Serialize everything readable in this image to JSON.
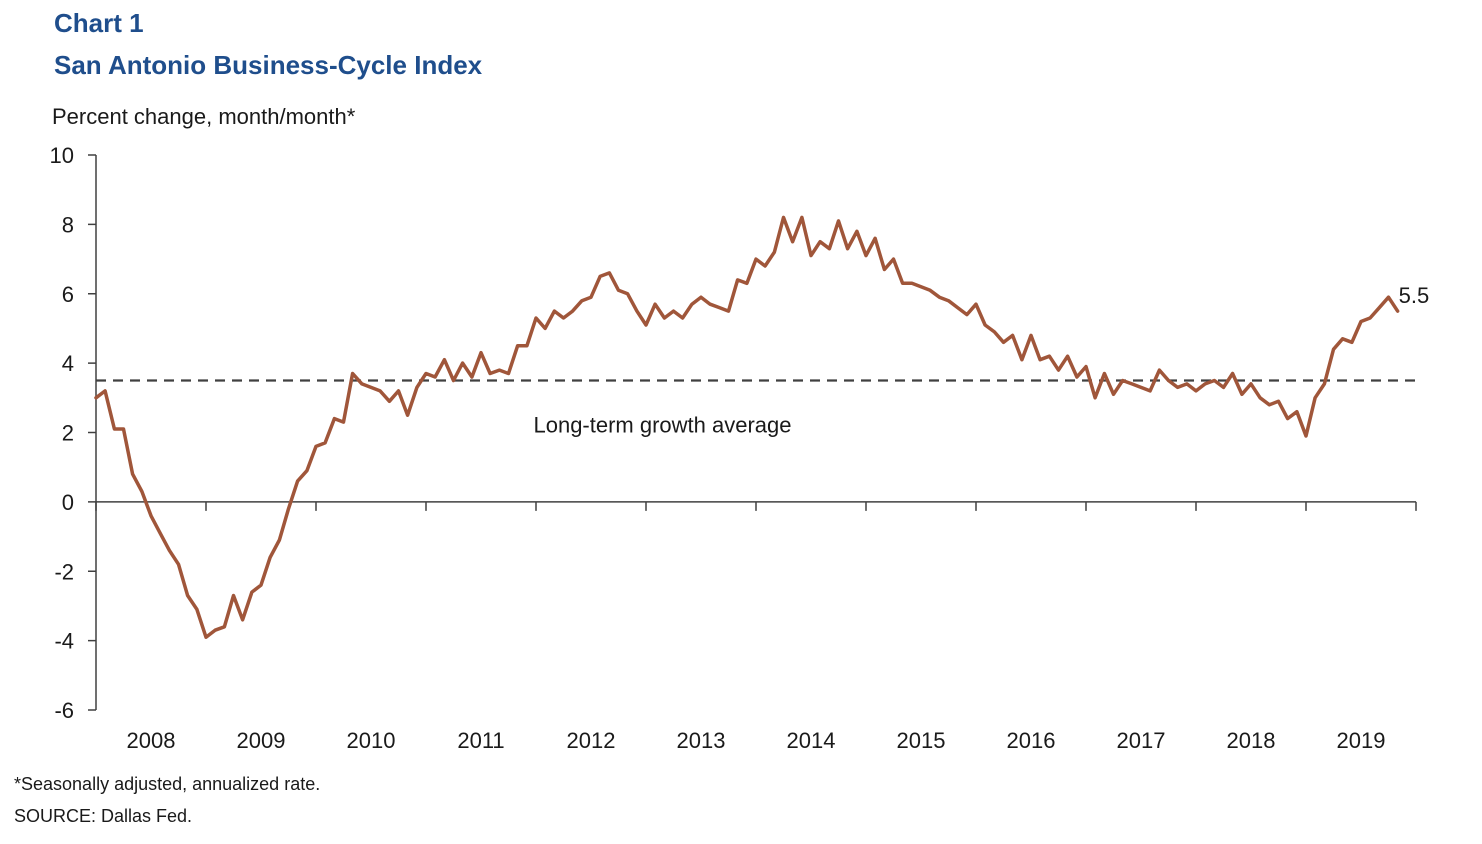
{
  "header": {
    "chart_label": "Chart 1",
    "title": "San Antonio Business-Cycle Index",
    "y_unit": "Percent change, month/month*"
  },
  "footer": {
    "footnote": "*Seasonally adjusted, annualized rate.",
    "source": "SOURCE: Dallas Fed."
  },
  "colors": {
    "series": "#a0563a",
    "reference": "#404040",
    "axis": "#404040"
  },
  "chart_data": {
    "type": "line",
    "title": "San Antonio Business-Cycle Index",
    "ylabel": "Percent change, month/month*",
    "xlabel": "",
    "ylim": [
      -6,
      10
    ],
    "xlim": [
      2008,
      2020
    ],
    "y_ticks": [
      -6,
      -4,
      -2,
      0,
      2,
      4,
      6,
      8,
      10
    ],
    "x_tick_labels": [
      "2008",
      "2009",
      "2010",
      "2011",
      "2012",
      "2013",
      "2014",
      "2015",
      "2016",
      "2017",
      "2018",
      "2019"
    ],
    "reference_line": {
      "label": "Long-term growth average",
      "value": 3.5,
      "style": "dashed"
    },
    "end_label": "5.5",
    "grid": false,
    "series": [
      {
        "x": [
          2008.0,
          2008.083,
          2008.167,
          2008.25,
          2008.333,
          2008.417,
          2008.5,
          2008.583,
          2008.667,
          2008.75,
          2008.833,
          2008.917,
          2009.0,
          2009.083,
          2009.167,
          2009.25,
          2009.333,
          2009.417,
          2009.5,
          2009.583,
          2009.667,
          2009.75,
          2009.833,
          2009.917,
          2010.0,
          2010.083,
          2010.167,
          2010.25,
          2010.333,
          2010.417,
          2010.5,
          2010.583,
          2010.667,
          2010.75,
          2010.833,
          2010.917,
          2011.0,
          2011.083,
          2011.167,
          2011.25,
          2011.333,
          2011.417,
          2011.5,
          2011.583,
          2011.667,
          2011.75,
          2011.833,
          2011.917,
          2012.0,
          2012.083,
          2012.167,
          2012.25,
          2012.333,
          2012.417,
          2012.5,
          2012.583,
          2012.667,
          2012.75,
          2012.833,
          2012.917,
          2013.0,
          2013.083,
          2013.167,
          2013.25,
          2013.333,
          2013.417,
          2013.5,
          2013.583,
          2013.667,
          2013.75,
          2013.833,
          2013.917,
          2014.0,
          2014.083,
          2014.167,
          2014.25,
          2014.333,
          2014.417,
          2014.5,
          2014.583,
          2014.667,
          2014.75,
          2014.833,
          2014.917,
          2015.0,
          2015.083,
          2015.167,
          2015.25,
          2015.333,
          2015.417,
          2015.5,
          2015.583,
          2015.667,
          2015.75,
          2015.833,
          2015.917,
          2016.0,
          2016.083,
          2016.167,
          2016.25,
          2016.333,
          2016.417,
          2016.5,
          2016.583,
          2016.667,
          2016.75,
          2016.833,
          2016.917,
          2017.0,
          2017.083,
          2017.167,
          2017.25,
          2017.333,
          2017.417,
          2017.5,
          2017.583,
          2017.667,
          2017.75,
          2017.833,
          2017.917,
          2018.0,
          2018.083,
          2018.167,
          2018.25,
          2018.333,
          2018.417,
          2018.5,
          2018.583,
          2018.667,
          2018.75,
          2018.833,
          2018.917,
          2019.0,
          2019.083,
          2019.167,
          2019.25,
          2019.333,
          2019.417,
          2019.5,
          2019.583,
          2019.667,
          2019.75,
          2019.833
        ],
        "values": [
          3.0,
          3.2,
          2.1,
          2.1,
          0.8,
          0.3,
          -0.4,
          -0.9,
          -1.4,
          -1.8,
          -2.7,
          -3.1,
          -3.9,
          -3.7,
          -3.6,
          -2.7,
          -3.4,
          -2.6,
          -2.4,
          -1.6,
          -1.1,
          -0.2,
          0.6,
          0.9,
          1.6,
          1.7,
          2.4,
          2.3,
          3.7,
          3.4,
          3.3,
          3.2,
          2.9,
          3.2,
          2.5,
          3.3,
          3.7,
          3.6,
          4.1,
          3.5,
          4.0,
          3.6,
          4.3,
          3.7,
          3.8,
          3.7,
          4.5,
          4.5,
          5.3,
          5.0,
          5.5,
          5.3,
          5.5,
          5.8,
          5.9,
          6.5,
          6.6,
          6.1,
          6.0,
          5.5,
          5.1,
          5.7,
          5.3,
          5.5,
          5.3,
          5.7,
          5.9,
          5.7,
          5.6,
          5.5,
          6.4,
          6.3,
          7.0,
          6.8,
          7.2,
          8.2,
          7.5,
          8.2,
          7.1,
          7.5,
          7.3,
          8.1,
          7.3,
          7.8,
          7.1,
          7.6,
          6.7,
          7.0,
          6.3,
          6.3,
          6.2,
          6.1,
          5.9,
          5.8,
          5.6,
          5.4,
          5.7,
          5.1,
          4.9,
          4.6,
          4.8,
          4.1,
          4.8,
          4.1,
          4.2,
          3.8,
          4.2,
          3.6,
          3.9,
          3.0,
          3.7,
          3.1,
          3.5,
          3.4,
          3.3,
          3.2,
          3.8,
          3.5,
          3.3,
          3.4,
          3.2,
          3.4,
          3.5,
          3.3,
          3.7,
          3.1,
          3.4,
          3.0,
          2.8,
          2.9,
          2.4,
          2.6,
          1.9,
          3.0,
          3.4,
          4.4,
          4.7,
          4.6,
          5.2,
          5.3,
          5.6,
          5.9,
          5.5
        ]
      }
    ]
  }
}
